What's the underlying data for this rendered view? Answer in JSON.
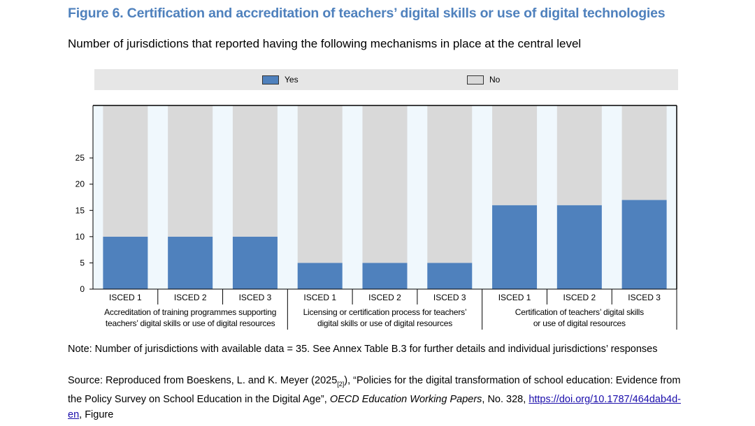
{
  "figure": {
    "title": "Figure 6. Certification and accreditation of teachers’ digital skills or use of digital technologies",
    "subtitle": "Number of jurisdictions that reported having the following mechanisms in place at the central level"
  },
  "legend": {
    "yes_label": "Yes",
    "no_label": "No",
    "yes_color": "#4f81bd",
    "no_color": "#d9d9d9"
  },
  "chart_data": {
    "type": "bar",
    "stacked": true,
    "total": 35,
    "categories": [
      "ISCED 1",
      "ISCED 2",
      "ISCED 3",
      "ISCED 1",
      "ISCED 2",
      "ISCED 3",
      "ISCED 1",
      "ISCED 2",
      "ISCED 3"
    ],
    "groups": [
      {
        "label_lines": [
          "Accreditation of training programmes supporting",
          "teachers’ digital skills or use of digital resources"
        ]
      },
      {
        "label_lines": [
          "Licensing or certification process for teachers’",
          "digital skills or use of digital resources"
        ]
      },
      {
        "label_lines": [
          "Certification of teachers’ digital skills",
          "or use of digital resources"
        ]
      }
    ],
    "series": [
      {
        "name": "Yes",
        "values": [
          10,
          10,
          10,
          5,
          5,
          5,
          16,
          16,
          17
        ]
      },
      {
        "name": "No",
        "values": [
          25,
          25,
          25,
          30,
          30,
          30,
          19,
          19,
          18
        ]
      }
    ],
    "yticks": [
      0,
      5,
      10,
      15,
      20,
      25
    ],
    "ylim": [
      0,
      35
    ],
    "grid": false,
    "legend_position": "top"
  },
  "note": {
    "text": "Note: Number of jurisdictions with available data = 35. See Annex Table B.3 for further details and individual jurisdictions’ responses"
  },
  "source": {
    "lead": "Source: Reproduced from Boeskens, L. and K. Meyer (2025",
    "ref": "[2]",
    "mid": "), “Policies for the digital transformation of school education: Evidence from the Policy Survey on School Education in the Digital Age”, ",
    "journal": "OECD Education Working Papers",
    "after": ", No. 328, ",
    "link": "https://doi.org/10.1787/464dab4d-en",
    "tail": ", Figure"
  }
}
